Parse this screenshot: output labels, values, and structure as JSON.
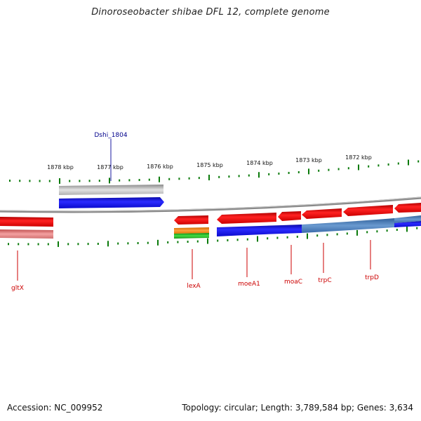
{
  "title": "Dinoroseobacter shibae DFL 12, complete genome",
  "footer": {
    "accession": "Accession: NC_009952",
    "topology": "Topology: circular; Length: 3,789,584 bp; Genes: 3,634"
  },
  "colors": {
    "tick": "#0a7a0a",
    "backbone": "#7d7d7d",
    "forward_gene": "#1111ee",
    "reverse_gene": "#ee1111",
    "gray_feature": "#b8b8b8",
    "label_blue": "#00008b",
    "label_red": "#cc0000",
    "orange_feature": "#f08a00",
    "green_feature": "#22aa22",
    "steel_feature": "#4a7fb8"
  },
  "kbp_labels": [
    "1878 kbp",
    "1877 kbp",
    "1876 kbp",
    "1875 kbp",
    "1874 kbp",
    "1873 kbp",
    "1872 kbp"
  ],
  "gene_labels": {
    "top": [
      "Dshi_1804"
    ],
    "bottom": [
      "gltX",
      "lexA",
      "moeA1",
      "moaC",
      "trpC",
      "trpD"
    ]
  }
}
